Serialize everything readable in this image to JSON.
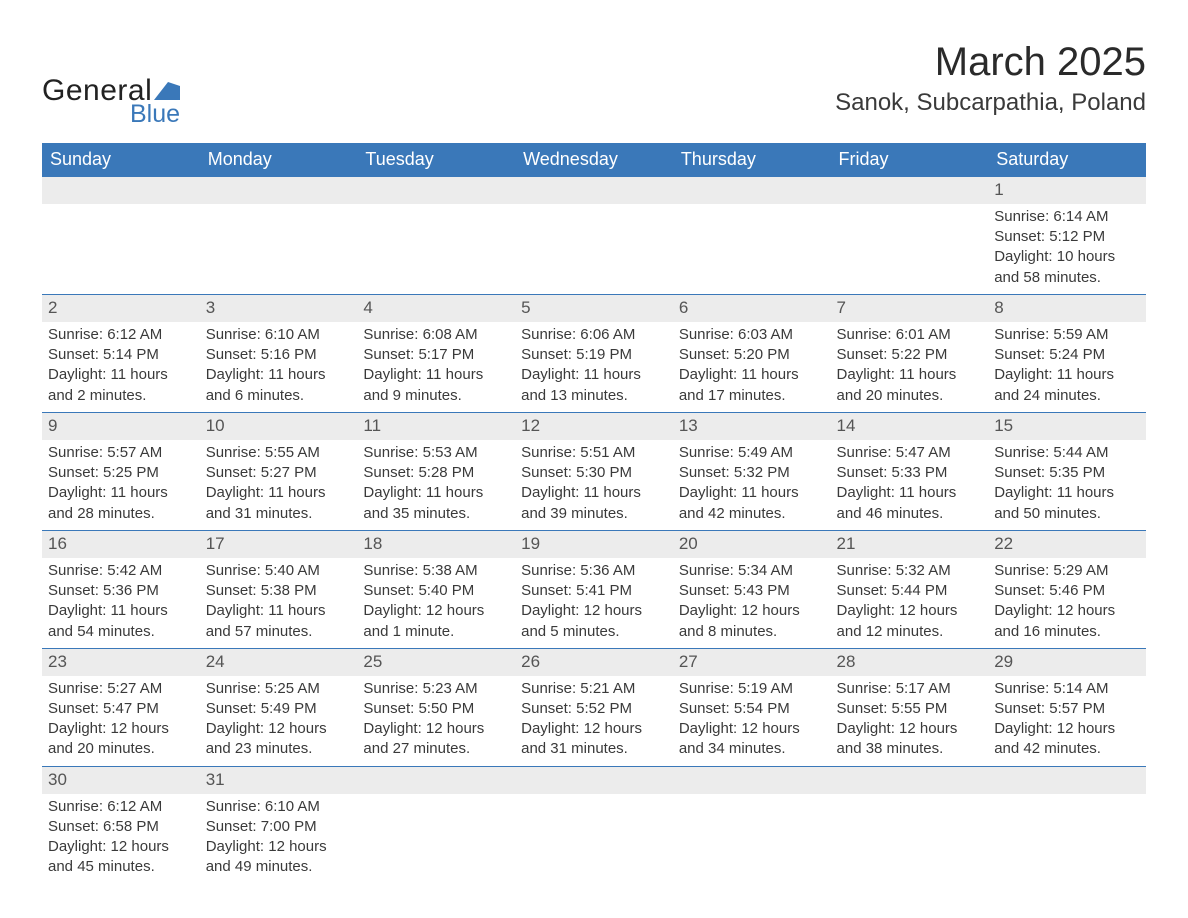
{
  "brand": {
    "name_a": "General",
    "name_b": "Blue",
    "shape_color": "#3a78b9"
  },
  "title": "March 2025",
  "location": "Sanok, Subcarpathia, Poland",
  "colors": {
    "header_bg": "#3a78b9",
    "header_text": "#ffffff",
    "daynum_bg": "#ececec",
    "row_divider": "#3a78b9",
    "text": "#3a3a3a",
    "page_bg": "#ffffff"
  },
  "typography": {
    "title_fontsize": 40,
    "location_fontsize": 24,
    "header_fontsize": 18,
    "cell_fontsize": 15
  },
  "layout": {
    "columns": 7,
    "weeks": 6
  },
  "weekdays": [
    "Sunday",
    "Monday",
    "Tuesday",
    "Wednesday",
    "Thursday",
    "Friday",
    "Saturday"
  ],
  "weeks": [
    [
      null,
      null,
      null,
      null,
      null,
      null,
      {
        "day": "1",
        "sunrise": "Sunrise: 6:14 AM",
        "sunset": "Sunset: 5:12 PM",
        "daylight1": "Daylight: 10 hours",
        "daylight2": "and 58 minutes."
      }
    ],
    [
      {
        "day": "2",
        "sunrise": "Sunrise: 6:12 AM",
        "sunset": "Sunset: 5:14 PM",
        "daylight1": "Daylight: 11 hours",
        "daylight2": "and 2 minutes."
      },
      {
        "day": "3",
        "sunrise": "Sunrise: 6:10 AM",
        "sunset": "Sunset: 5:16 PM",
        "daylight1": "Daylight: 11 hours",
        "daylight2": "and 6 minutes."
      },
      {
        "day": "4",
        "sunrise": "Sunrise: 6:08 AM",
        "sunset": "Sunset: 5:17 PM",
        "daylight1": "Daylight: 11 hours",
        "daylight2": "and 9 minutes."
      },
      {
        "day": "5",
        "sunrise": "Sunrise: 6:06 AM",
        "sunset": "Sunset: 5:19 PM",
        "daylight1": "Daylight: 11 hours",
        "daylight2": "and 13 minutes."
      },
      {
        "day": "6",
        "sunrise": "Sunrise: 6:03 AM",
        "sunset": "Sunset: 5:20 PM",
        "daylight1": "Daylight: 11 hours",
        "daylight2": "and 17 minutes."
      },
      {
        "day": "7",
        "sunrise": "Sunrise: 6:01 AM",
        "sunset": "Sunset: 5:22 PM",
        "daylight1": "Daylight: 11 hours",
        "daylight2": "and 20 minutes."
      },
      {
        "day": "8",
        "sunrise": "Sunrise: 5:59 AM",
        "sunset": "Sunset: 5:24 PM",
        "daylight1": "Daylight: 11 hours",
        "daylight2": "and 24 minutes."
      }
    ],
    [
      {
        "day": "9",
        "sunrise": "Sunrise: 5:57 AM",
        "sunset": "Sunset: 5:25 PM",
        "daylight1": "Daylight: 11 hours",
        "daylight2": "and 28 minutes."
      },
      {
        "day": "10",
        "sunrise": "Sunrise: 5:55 AM",
        "sunset": "Sunset: 5:27 PM",
        "daylight1": "Daylight: 11 hours",
        "daylight2": "and 31 minutes."
      },
      {
        "day": "11",
        "sunrise": "Sunrise: 5:53 AM",
        "sunset": "Sunset: 5:28 PM",
        "daylight1": "Daylight: 11 hours",
        "daylight2": "and 35 minutes."
      },
      {
        "day": "12",
        "sunrise": "Sunrise: 5:51 AM",
        "sunset": "Sunset: 5:30 PM",
        "daylight1": "Daylight: 11 hours",
        "daylight2": "and 39 minutes."
      },
      {
        "day": "13",
        "sunrise": "Sunrise: 5:49 AM",
        "sunset": "Sunset: 5:32 PM",
        "daylight1": "Daylight: 11 hours",
        "daylight2": "and 42 minutes."
      },
      {
        "day": "14",
        "sunrise": "Sunrise: 5:47 AM",
        "sunset": "Sunset: 5:33 PM",
        "daylight1": "Daylight: 11 hours",
        "daylight2": "and 46 minutes."
      },
      {
        "day": "15",
        "sunrise": "Sunrise: 5:44 AM",
        "sunset": "Sunset: 5:35 PM",
        "daylight1": "Daylight: 11 hours",
        "daylight2": "and 50 minutes."
      }
    ],
    [
      {
        "day": "16",
        "sunrise": "Sunrise: 5:42 AM",
        "sunset": "Sunset: 5:36 PM",
        "daylight1": "Daylight: 11 hours",
        "daylight2": "and 54 minutes."
      },
      {
        "day": "17",
        "sunrise": "Sunrise: 5:40 AM",
        "sunset": "Sunset: 5:38 PM",
        "daylight1": "Daylight: 11 hours",
        "daylight2": "and 57 minutes."
      },
      {
        "day": "18",
        "sunrise": "Sunrise: 5:38 AM",
        "sunset": "Sunset: 5:40 PM",
        "daylight1": "Daylight: 12 hours",
        "daylight2": "and 1 minute."
      },
      {
        "day": "19",
        "sunrise": "Sunrise: 5:36 AM",
        "sunset": "Sunset: 5:41 PM",
        "daylight1": "Daylight: 12 hours",
        "daylight2": "and 5 minutes."
      },
      {
        "day": "20",
        "sunrise": "Sunrise: 5:34 AM",
        "sunset": "Sunset: 5:43 PM",
        "daylight1": "Daylight: 12 hours",
        "daylight2": "and 8 minutes."
      },
      {
        "day": "21",
        "sunrise": "Sunrise: 5:32 AM",
        "sunset": "Sunset: 5:44 PM",
        "daylight1": "Daylight: 12 hours",
        "daylight2": "and 12 minutes."
      },
      {
        "day": "22",
        "sunrise": "Sunrise: 5:29 AM",
        "sunset": "Sunset: 5:46 PM",
        "daylight1": "Daylight: 12 hours",
        "daylight2": "and 16 minutes."
      }
    ],
    [
      {
        "day": "23",
        "sunrise": "Sunrise: 5:27 AM",
        "sunset": "Sunset: 5:47 PM",
        "daylight1": "Daylight: 12 hours",
        "daylight2": "and 20 minutes."
      },
      {
        "day": "24",
        "sunrise": "Sunrise: 5:25 AM",
        "sunset": "Sunset: 5:49 PM",
        "daylight1": "Daylight: 12 hours",
        "daylight2": "and 23 minutes."
      },
      {
        "day": "25",
        "sunrise": "Sunrise: 5:23 AM",
        "sunset": "Sunset: 5:50 PM",
        "daylight1": "Daylight: 12 hours",
        "daylight2": "and 27 minutes."
      },
      {
        "day": "26",
        "sunrise": "Sunrise: 5:21 AM",
        "sunset": "Sunset: 5:52 PM",
        "daylight1": "Daylight: 12 hours",
        "daylight2": "and 31 minutes."
      },
      {
        "day": "27",
        "sunrise": "Sunrise: 5:19 AM",
        "sunset": "Sunset: 5:54 PM",
        "daylight1": "Daylight: 12 hours",
        "daylight2": "and 34 minutes."
      },
      {
        "day": "28",
        "sunrise": "Sunrise: 5:17 AM",
        "sunset": "Sunset: 5:55 PM",
        "daylight1": "Daylight: 12 hours",
        "daylight2": "and 38 minutes."
      },
      {
        "day": "29",
        "sunrise": "Sunrise: 5:14 AM",
        "sunset": "Sunset: 5:57 PM",
        "daylight1": "Daylight: 12 hours",
        "daylight2": "and 42 minutes."
      }
    ],
    [
      {
        "day": "30",
        "sunrise": "Sunrise: 6:12 AM",
        "sunset": "Sunset: 6:58 PM",
        "daylight1": "Daylight: 12 hours",
        "daylight2": "and 45 minutes."
      },
      {
        "day": "31",
        "sunrise": "Sunrise: 6:10 AM",
        "sunset": "Sunset: 7:00 PM",
        "daylight1": "Daylight: 12 hours",
        "daylight2": "and 49 minutes."
      },
      null,
      null,
      null,
      null,
      null
    ]
  ]
}
